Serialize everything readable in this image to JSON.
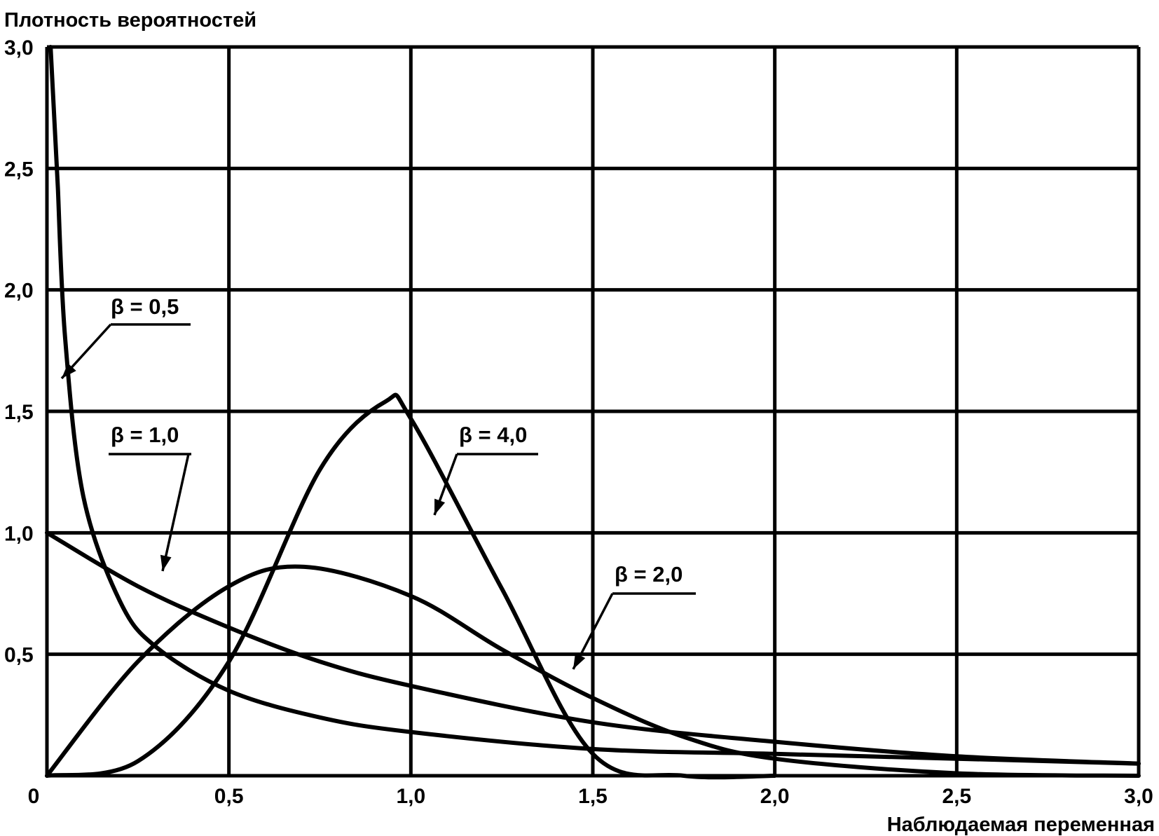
{
  "chart_data": {
    "type": "line",
    "title": "",
    "ylabel": "Плотность вероятностей",
    "xlabel": "Наблюдаемая переменная",
    "xlim": [
      0,
      3.0
    ],
    "ylim": [
      0,
      3.0
    ],
    "grid": true,
    "x_ticks": [
      0.5,
      1.0,
      1.5,
      2.0,
      2.5,
      3.0
    ],
    "x_tick_labels": [
      "0,5",
      "1,0",
      "1,5",
      "2,0",
      "2,5",
      "3,0"
    ],
    "y_ticks": [
      0.5,
      1.0,
      1.5,
      2.0,
      2.5,
      3.0
    ],
    "y_tick_labels": [
      "0,5",
      "1,0",
      "1,5",
      "2,0",
      "2,5",
      "3,0"
    ],
    "origin_label": "0",
    "series": [
      {
        "name": "β = 0,5",
        "x": [
          0.03,
          0.05,
          0.1,
          0.2,
          0.3,
          0.5,
          0.75,
          1.0,
          1.5,
          2.0,
          2.5,
          3.0
        ],
        "y": [
          2.42,
          1.8,
          1.15,
          0.72,
          0.53,
          0.35,
          0.24,
          0.18,
          0.11,
          0.09,
          0.07,
          0.05
        ]
      },
      {
        "name": "β = 1,0",
        "x": [
          0,
          0.25,
          0.5,
          0.75,
          1.0,
          1.5,
          2.0,
          2.5,
          3.0
        ],
        "y": [
          1.0,
          0.78,
          0.61,
          0.47,
          0.37,
          0.22,
          0.14,
          0.08,
          0.05
        ]
      },
      {
        "name": "β = 2,0",
        "x": [
          0,
          0.25,
          0.5,
          0.707,
          1.0,
          1.25,
          1.5,
          1.75,
          2.0,
          2.5,
          3.0
        ],
        "y": [
          0,
          0.47,
          0.78,
          0.86,
          0.74,
          0.52,
          0.32,
          0.16,
          0.07,
          0.01,
          0.0
        ]
      },
      {
        "name": "β = 4,0",
        "x": [
          0,
          0.25,
          0.5,
          0.75,
          0.93,
          1.0,
          1.25,
          1.5,
          1.75,
          2.0
        ],
        "y": [
          0,
          0.06,
          0.47,
          1.26,
          1.54,
          1.47,
          0.77,
          0.09,
          0.0,
          0.0
        ]
      }
    ],
    "annotations": [
      {
        "text": "β = 0,5",
        "series": "β = 0,5"
      },
      {
        "text": "β = 1,0",
        "series": "β = 1,0"
      },
      {
        "text": "β = 2,0",
        "series": "β = 2,0"
      },
      {
        "text": "β = 4,0",
        "series": "β = 4,0"
      }
    ],
    "line_color": "#000000",
    "background": "#ffffff"
  }
}
